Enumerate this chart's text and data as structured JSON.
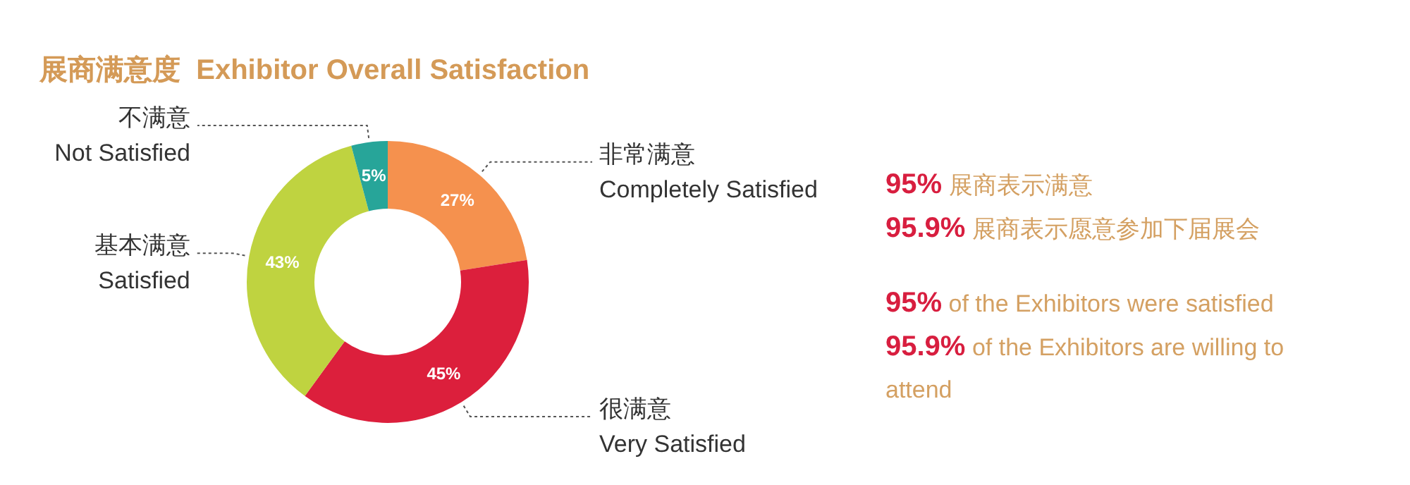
{
  "chart_data": {
    "type": "donut",
    "title": "展商满意度  Exhibitor Overall Satisfaction",
    "categories": [
      "非常满意\nCompletely Satisfied",
      "很满意\nVery Satisfied",
      "基本满意\nSatisfied",
      "不满意\nNot Satisfied"
    ],
    "values": [
      27,
      45,
      43,
      5
    ],
    "value_labels": [
      "27%",
      "45%",
      "43%",
      "5%"
    ],
    "colors": [
      "#f5914e",
      "#dc1f3c",
      "#bfd340",
      "#27a599"
    ],
    "annotations": [
      "95% 展商表示满意",
      "95.9% 展商表示愿意参加下届展会",
      "95% of the Exhibitors were satisfied",
      "95.9% of the Exhibitors are willing to attend"
    ]
  }
}
